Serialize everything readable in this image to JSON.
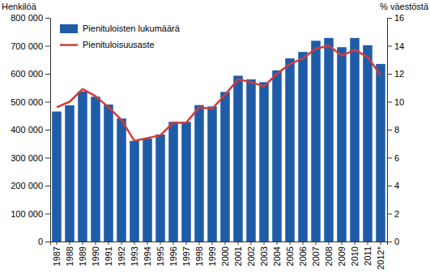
{
  "chart_data": {
    "type": "bar",
    "categories": [
      "1987",
      "1988",
      "1989",
      "1990",
      "1991",
      "1992",
      "1993",
      "1994",
      "1995",
      "1996",
      "1997",
      "1998",
      "1999",
      "2000",
      "2001",
      "2002",
      "2003",
      "2004",
      "2005",
      "2006",
      "2007",
      "2008",
      "2009",
      "2010",
      "2011",
      "2012*"
    ],
    "series": [
      {
        "name": "Pienituloisten lukumäärä",
        "type": "bar",
        "color": "#1f5ca8",
        "values": [
          465000,
          487000,
          537000,
          518000,
          490000,
          440000,
          360000,
          368000,
          383000,
          428000,
          428000,
          488000,
          483000,
          535000,
          593000,
          580000,
          570000,
          612000,
          655000,
          678000,
          718000,
          728000,
          695000,
          728000,
          702000,
          635000
        ]
      },
      {
        "name": "Pienituloisuusaste",
        "type": "line",
        "axis": "y2",
        "color": "#d43a3a",
        "values": [
          9.6,
          10.0,
          10.9,
          10.4,
          9.6,
          8.7,
          7.2,
          7.4,
          7.6,
          8.5,
          8.5,
          9.6,
          9.5,
          10.5,
          11.6,
          11.4,
          11.1,
          12.0,
          12.7,
          13.1,
          13.8,
          14.0,
          13.3,
          13.7,
          13.2,
          11.9
        ]
      }
    ],
    "ylabel": "Henkilöä",
    "y2label": "% väestöstä",
    "ylim": [
      0,
      800000
    ],
    "yticks": [
      0,
      {
        "value": 100000,
        "label": "100 000"
      },
      {
        "value": 200000,
        "label": "200 000"
      },
      {
        "value": 300000,
        "label": "300 000"
      },
      {
        "value": 400000,
        "label": "400 000"
      },
      {
        "value": 500000,
        "label": "500 000"
      },
      {
        "value": 600000,
        "label": "600 000"
      },
      {
        "value": 700000,
        "label": "700 000"
      },
      {
        "value": 800000,
        "label": "800 000"
      }
    ],
    "y2lim": [
      0,
      16
    ],
    "y2ticks": [
      0,
      2,
      4,
      6,
      8,
      10,
      12,
      14,
      16
    ],
    "legend": "upper left",
    "grid": false
  }
}
